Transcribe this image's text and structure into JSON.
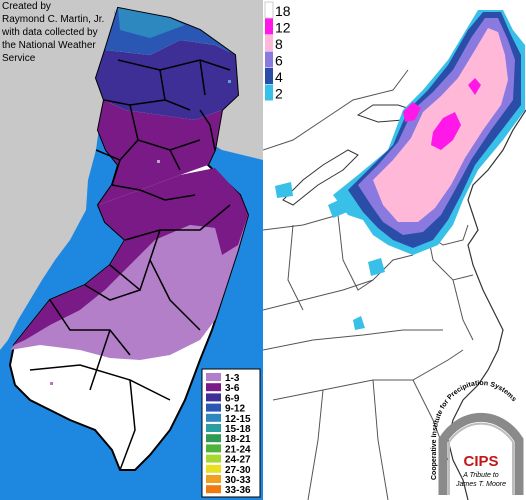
{
  "credit_lines": [
    "Created by",
    "Raymond C. Martin, Jr.",
    "with data collected by",
    "the National Weather",
    "Service"
  ],
  "nj_legend": [
    {
      "label": "1-3",
      "color": "#b37fc8"
    },
    {
      "label": "3-6",
      "color": "#7a1a86"
    },
    {
      "label": "6-9",
      "color": "#3d2f96"
    },
    {
      "label": "9-12",
      "color": "#2a57b4"
    },
    {
      "label": "12-15",
      "color": "#2d88c0"
    },
    {
      "label": "15-18",
      "color": "#2a9fa0"
    },
    {
      "label": "18-21",
      "color": "#2e9a55"
    },
    {
      "label": "21-24",
      "color": "#4cb43a"
    },
    {
      "label": "24-27",
      "color": "#a8d830"
    },
    {
      "label": "27-30",
      "color": "#e8e020"
    },
    {
      "label": "30-33",
      "color": "#f0a020"
    },
    {
      "label": "33-36",
      "color": "#f07a10"
    }
  ],
  "ne_scale": [
    {
      "label": "18",
      "color": "#ffffff"
    },
    {
      "label": "12",
      "color": "#ff18e8"
    },
    {
      "label": "8",
      "color": "#ffb8d8"
    },
    {
      "label": "6",
      "color": "#8a7ae0"
    },
    {
      "label": "4",
      "color": "#2a4ea8"
    },
    {
      "label": "2",
      "color": "#38c0e8"
    }
  ],
  "logo": {
    "arc_text": "Cooperative Institute for Precipitation Systems",
    "acronym": "CIPS",
    "tribute_line1": "A Tribute to",
    "tribute_line2": "James T. Moore"
  }
}
